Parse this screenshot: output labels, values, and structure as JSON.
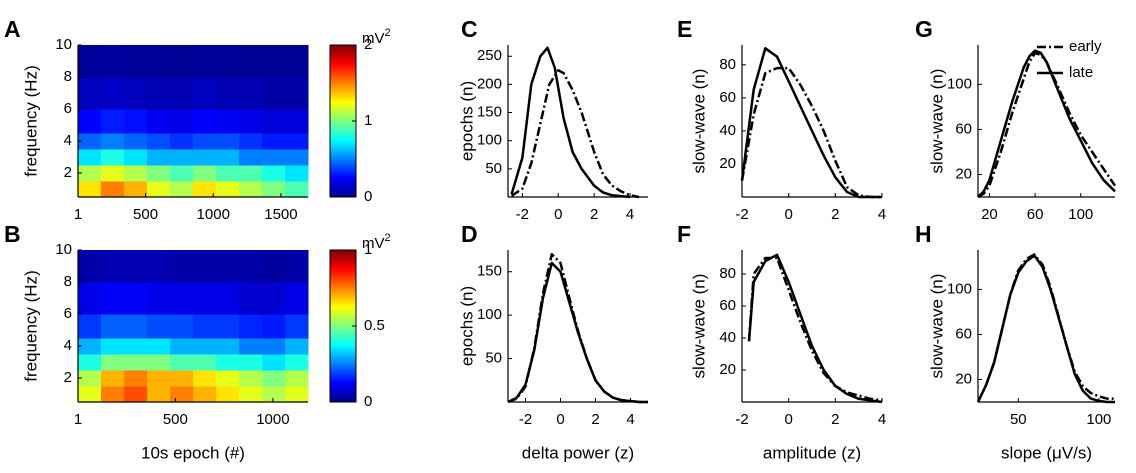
{
  "chart_data": [
    {
      "type": "heatmap",
      "label": "A",
      "ylabel": "frequency (Hz)",
      "colormap": "jet",
      "x_edges": [
        1,
        170,
        340,
        510,
        680,
        850,
        1020,
        1190,
        1360,
        1530,
        1700
      ],
      "y_edges": [
        0.5,
        1.5,
        2.5,
        3.5,
        4.5,
        6,
        8,
        10
      ],
      "z": [
        [
          1.3,
          1.5,
          1.4,
          1.2,
          1.1,
          1.3,
          1.2,
          1.1,
          1.0,
          0.9
        ],
        [
          1.1,
          1.2,
          1.1,
          1.0,
          0.9,
          1.0,
          0.9,
          0.9,
          0.8,
          0.7
        ],
        [
          0.7,
          0.8,
          0.7,
          0.6,
          0.6,
          0.6,
          0.6,
          0.5,
          0.5,
          0.5
        ],
        [
          0.45,
          0.5,
          0.45,
          0.4,
          0.35,
          0.4,
          0.4,
          0.35,
          0.3,
          0.3
        ],
        [
          0.25,
          0.3,
          0.28,
          0.22,
          0.2,
          0.25,
          0.22,
          0.2,
          0.18,
          0.18
        ],
        [
          0.12,
          0.14,
          0.12,
          0.1,
          0.1,
          0.12,
          0.1,
          0.1,
          0.08,
          0.08
        ],
        [
          0.05,
          0.06,
          0.05,
          0.05,
          0.04,
          0.05,
          0.05,
          0.04,
          0.04,
          0.04
        ]
      ],
      "xlim": [
        1,
        1700
      ],
      "ylim": [
        0.5,
        10
      ],
      "xticks": [
        1,
        500,
        1000,
        1500
      ],
      "yticks": [
        2,
        4,
        6,
        8,
        10
      ],
      "colorbar": {
        "lim": [
          0,
          2
        ],
        "ticks": [
          0,
          1,
          2
        ],
        "unit": "mV",
        "unit_sup": "2"
      }
    },
    {
      "type": "heatmap",
      "label": "B",
      "ylabel": "frequency (Hz)",
      "xlabel": "10s epoch (#)",
      "colormap": "jet",
      "x_edges": [
        1,
        119,
        237,
        355,
        473,
        591,
        709,
        827,
        945,
        1063,
        1180
      ],
      "y_edges": [
        0.5,
        1.5,
        2.5,
        3.5,
        4.5,
        6,
        8,
        10
      ],
      "z": [
        [
          0.6,
          0.75,
          0.8,
          0.7,
          0.75,
          0.7,
          0.65,
          0.6,
          0.55,
          0.6
        ],
        [
          0.55,
          0.7,
          0.75,
          0.7,
          0.7,
          0.65,
          0.6,
          0.55,
          0.5,
          0.55
        ],
        [
          0.4,
          0.5,
          0.5,
          0.5,
          0.45,
          0.45,
          0.4,
          0.4,
          0.35,
          0.4
        ],
        [
          0.3,
          0.35,
          0.35,
          0.35,
          0.3,
          0.3,
          0.3,
          0.25,
          0.25,
          0.3
        ],
        [
          0.18,
          0.22,
          0.22,
          0.2,
          0.2,
          0.18,
          0.18,
          0.16,
          0.15,
          0.18
        ],
        [
          0.1,
          0.12,
          0.12,
          0.1,
          0.1,
          0.1,
          0.1,
          0.08,
          0.08,
          0.1
        ],
        [
          0.04,
          0.05,
          0.05,
          0.05,
          0.04,
          0.04,
          0.04,
          0.04,
          0.03,
          0.04
        ]
      ],
      "xlim": [
        1,
        1180
      ],
      "ylim": [
        0.5,
        10
      ],
      "xticks": [
        1,
        500,
        1000
      ],
      "yticks": [
        2,
        4,
        6,
        8,
        10
      ],
      "colorbar": {
        "lim": [
          0,
          1
        ],
        "ticks": [
          0,
          0.5,
          1
        ],
        "unit": "mV",
        "unit_sup": "2"
      }
    },
    {
      "type": "line",
      "label": "C",
      "ylabel": "epochs (n)",
      "xlim": [
        -2.8,
        5
      ],
      "ylim": [
        0,
        270
      ],
      "xticks": [
        -2,
        0,
        2,
        4
      ],
      "yticks": [
        50,
        100,
        150,
        200,
        250
      ],
      "series": [
        {
          "color": "#000000",
          "dash": "dashdot",
          "x": [
            -2.6,
            -2,
            -1.5,
            -1,
            -0.5,
            0,
            0.3,
            0.8,
            1.3,
            2,
            2.5,
            3,
            3.5,
            4,
            4.5
          ],
          "values": [
            2,
            15,
            60,
            130,
            200,
            225,
            220,
            190,
            150,
            80,
            40,
            20,
            10,
            3,
            0
          ]
        },
        {
          "color": "#000000",
          "dash": "solid",
          "x": [
            -2.6,
            -2,
            -1.5,
            -1,
            -0.6,
            -0.2,
            0.3,
            0.8,
            1.3,
            2,
            2.5,
            3,
            4
          ],
          "values": [
            5,
            70,
            200,
            250,
            265,
            230,
            140,
            80,
            50,
            20,
            8,
            3,
            0
          ]
        }
      ]
    },
    {
      "type": "line",
      "label": "D",
      "ylabel": "epochs (n)",
      "xlabel": "delta power (z)",
      "xlim": [
        -3,
        5
      ],
      "ylim": [
        0,
        175
      ],
      "xticks": [
        -2,
        0,
        2,
        4
      ],
      "yticks": [
        50,
        100,
        150
      ],
      "series": [
        {
          "color": "#000000",
          "dash": "dashdot",
          "x": [
            -3,
            -2.5,
            -2,
            -1.5,
            -1,
            -0.5,
            0,
            0.5,
            1,
            1.5,
            2,
            2.5,
            3,
            3.5,
            4,
            4.5,
            5
          ],
          "values": [
            0,
            4,
            18,
            62,
            125,
            170,
            160,
            120,
            82,
            50,
            25,
            12,
            5,
            2,
            1,
            0,
            0
          ]
        },
        {
          "color": "#000000",
          "dash": "solid",
          "x": [
            -3,
            -2.5,
            -2,
            -1.5,
            -1,
            -0.5,
            0,
            0.5,
            1,
            1.5,
            2,
            2.5,
            3,
            3.5,
            4,
            4.5,
            5
          ],
          "values": [
            0,
            5,
            20,
            60,
            120,
            160,
            150,
            115,
            80,
            50,
            25,
            12,
            5,
            2,
            1,
            0,
            0
          ]
        }
      ]
    },
    {
      "type": "line",
      "label": "E",
      "ylabel": "slow-wave (n)",
      "xlim": [
        -2,
        4
      ],
      "ylim": [
        0,
        92
      ],
      "xticks": [
        -2,
        0,
        2,
        4
      ],
      "yticks": [
        20,
        40,
        60,
        80
      ],
      "series": [
        {
          "color": "#000000",
          "dash": "dashdot",
          "x": [
            -2,
            -1.5,
            -1,
            -0.5,
            0,
            0.5,
            1,
            1.5,
            2,
            2.5,
            3,
            3.5,
            4
          ],
          "values": [
            10,
            50,
            75,
            78,
            78,
            68,
            55,
            40,
            22,
            6,
            1,
            0,
            0
          ]
        },
        {
          "color": "#000000",
          "dash": "solid",
          "x": [
            -2,
            -1.5,
            -1,
            -0.5,
            0,
            0.5,
            1,
            1.5,
            2,
            2.5,
            3,
            3.5,
            4
          ],
          "values": [
            10,
            65,
            90,
            85,
            70,
            55,
            40,
            25,
            12,
            3,
            0,
            0,
            0
          ]
        }
      ]
    },
    {
      "type": "line",
      "label": "F",
      "ylabel": "slow-wave (n)",
      "xlabel": "amplitude (z)",
      "xlim": [
        -2,
        4
      ],
      "ylim": [
        0,
        95
      ],
      "xticks": [
        -2,
        0,
        2,
        4
      ],
      "yticks": [
        20,
        40,
        60,
        80
      ],
      "series": [
        {
          "color": "#000000",
          "dash": "dashdot",
          "x": [
            -1.7,
            -1.5,
            -1,
            -0.5,
            0,
            0.5,
            1,
            1.5,
            2,
            2.5,
            3,
            3.5,
            4
          ],
          "values": [
            38,
            80,
            90,
            90,
            70,
            50,
            32,
            18,
            10,
            6,
            4,
            2,
            1
          ]
        },
        {
          "color": "#000000",
          "dash": "solid",
          "x": [
            -1.7,
            -1.5,
            -1,
            -0.5,
            0,
            0.5,
            1,
            1.5,
            2,
            2.5,
            3,
            3.5,
            4
          ],
          "values": [
            38,
            75,
            88,
            92,
            75,
            55,
            35,
            20,
            10,
            5,
            2,
            1,
            0
          ]
        }
      ]
    },
    {
      "type": "line",
      "label": "G",
      "ylabel": "slow-wave (n)",
      "xlim": [
        10,
        130
      ],
      "ylim": [
        0,
        135
      ],
      "xticks": [
        20,
        60,
        100
      ],
      "yticks": [
        20,
        60,
        100
      ],
      "legend": "upper right",
      "series": [
        {
          "name": "early",
          "color": "#000000",
          "dash": "dashdot",
          "x": [
            10,
            15,
            20,
            30,
            40,
            50,
            55,
            60,
            65,
            70,
            80,
            90,
            100,
            110,
            120,
            130
          ],
          "values": [
            0,
            3,
            10,
            40,
            75,
            105,
            120,
            128,
            126,
            120,
            98,
            75,
            55,
            40,
            25,
            10
          ]
        },
        {
          "name": "late",
          "color": "#000000",
          "dash": "solid",
          "x": [
            10,
            15,
            20,
            30,
            40,
            50,
            55,
            60,
            65,
            70,
            80,
            90,
            100,
            110,
            120,
            130
          ],
          "values": [
            0,
            5,
            15,
            50,
            85,
            115,
            125,
            130,
            128,
            120,
            95,
            70,
            50,
            30,
            15,
            5
          ]
        }
      ]
    },
    {
      "type": "line",
      "label": "H",
      "ylabel": "slow-wave (n)",
      "xlabel": "slope (μV/s)",
      "xlim": [
        25,
        110
      ],
      "ylim": [
        0,
        135
      ],
      "xticks": [
        50,
        100
      ],
      "yticks": [
        20,
        60,
        100
      ],
      "series": [
        {
          "color": "#000000",
          "dash": "dashdot",
          "x": [
            25,
            30,
            35,
            40,
            45,
            50,
            55,
            60,
            65,
            70,
            75,
            80,
            85,
            90,
            95,
            100,
            105,
            110
          ],
          "values": [
            0,
            15,
            35,
            65,
            95,
            117,
            127,
            131,
            122,
            102,
            76,
            50,
            27,
            14,
            8,
            5,
            3,
            3
          ]
        },
        {
          "color": "#000000",
          "dash": "solid",
          "x": [
            25,
            30,
            35,
            40,
            45,
            50,
            55,
            60,
            65,
            70,
            75,
            80,
            85,
            90,
            95,
            100,
            105,
            110
          ],
          "values": [
            0,
            15,
            35,
            65,
            95,
            115,
            125,
            130,
            120,
            100,
            75,
            50,
            25,
            10,
            3,
            1,
            0,
            0
          ]
        }
      ]
    }
  ]
}
